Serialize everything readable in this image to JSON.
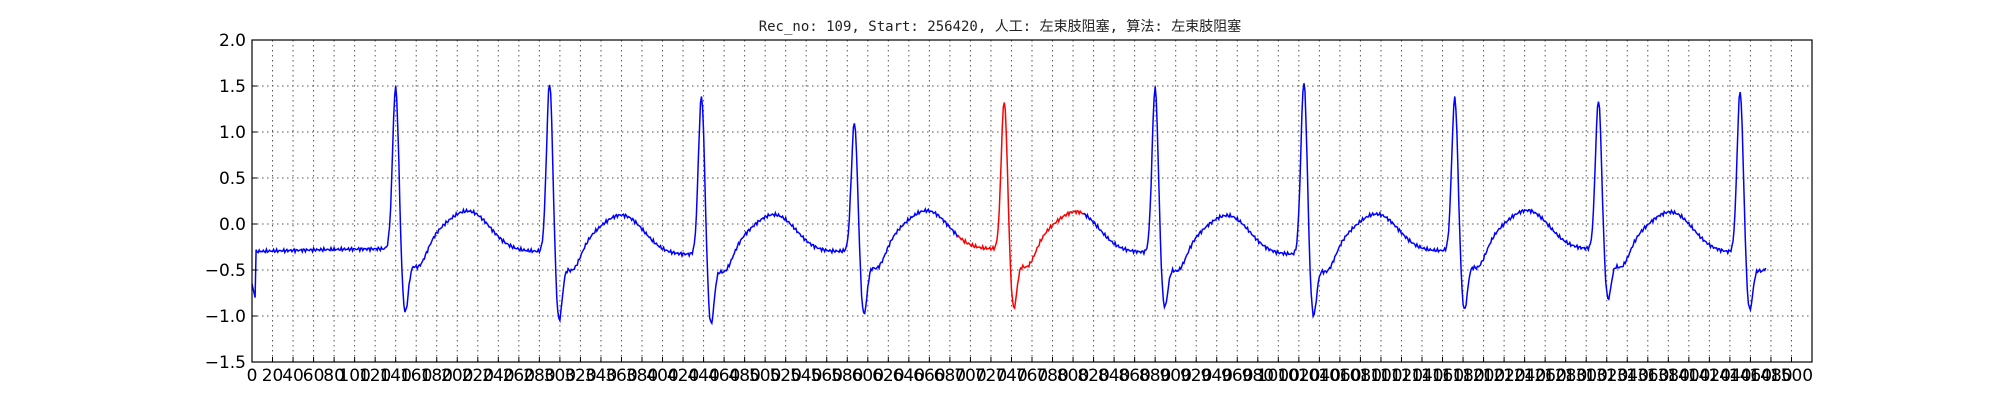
{
  "chart_data": {
    "type": "line",
    "title": "Rec_no: 109, Start: 256420, 人工: 左束肢阻塞, 算法: 左束肢阻塞",
    "xlabel": "",
    "ylabel": "",
    "xlim": [
      0,
      1520
    ],
    "ylim": [
      -1.5,
      2.0
    ],
    "grid": true,
    "x_ticks": [
      0,
      20,
      40,
      60,
      80,
      100,
      120,
      140,
      160,
      180,
      200,
      220,
      240,
      260,
      280,
      300,
      320,
      340,
      360,
      380,
      400,
      420,
      440,
      460,
      480,
      500,
      520,
      540,
      560,
      580,
      600,
      620,
      640,
      660,
      680,
      700,
      720,
      740,
      760,
      780,
      800,
      820,
      840,
      860,
      880,
      900,
      920,
      940,
      960,
      980,
      1000,
      1020,
      1040,
      1060,
      1080,
      1100,
      1120,
      1140,
      1160,
      1180,
      1200,
      1220,
      1240,
      1260,
      1280,
      1300,
      1320,
      1340,
      1360,
      1380,
      1400,
      1420,
      1440,
      1460,
      1480,
      1500,
      1520
    ],
    "x_tick_labels": [
      "0",
      "20",
      "40",
      "60",
      "80",
      "100",
      "120",
      "140",
      "160",
      "180",
      "200",
      "220",
      "240",
      "260",
      "280",
      "300",
      "320",
      "340",
      "360",
      "380",
      "400",
      "420",
      "440",
      "460",
      "480",
      "500",
      "520",
      "540",
      "560",
      "580",
      "600",
      "620",
      "640",
      "660",
      "680",
      "700",
      "720",
      "740",
      "760",
      "780",
      "800",
      "820",
      "840",
      "860",
      "880",
      "900",
      "920",
      "940",
      "960",
      "980",
      "1000",
      "1020",
      "1040",
      "1060",
      "1080",
      "1100",
      "1120",
      "1140",
      "1160",
      "1180",
      "1200",
      "1220",
      "1240",
      "1260",
      "1280",
      "1300",
      "1320",
      "1340",
      "1360",
      "1380",
      "1400",
      "1420",
      "1440",
      "1460",
      "1480",
      "1500",
      ""
    ],
    "y_ticks": [
      -1.5,
      -1.0,
      -0.5,
      0.0,
      0.5,
      1.0,
      1.5,
      2.0
    ],
    "y_tick_labels": [
      "−1.5",
      "−1.0",
      "−0.5",
      "0.0",
      "0.5",
      "1.0",
      "1.5",
      "2.0"
    ],
    "series": [
      {
        "color": "#0000ff",
        "beats_r_x": [
          140,
          290,
          438,
          587,
          880,
          1025,
          1172,
          1312,
          1450
        ],
        "beats_r_y": [
          1.47,
          1.55,
          1.43,
          1.11,
          1.5,
          1.58,
          1.37,
          1.33,
          1.46
        ],
        "beats_s_y": [
          -0.95,
          -1.0,
          -1.02,
          -0.95,
          -0.85,
          -0.93,
          -0.91,
          -0.8,
          -0.88
        ]
      },
      {
        "color": "#ff0000",
        "beats_r_x": [
          733
        ],
        "beats_r_y": [
          1.32
        ],
        "beats_s_y": [
          -0.9
        ],
        "segment_x": [
          688,
          810
        ]
      }
    ],
    "colors": {
      "normal": "#0000ff",
      "highlight": "#ff0000"
    }
  }
}
